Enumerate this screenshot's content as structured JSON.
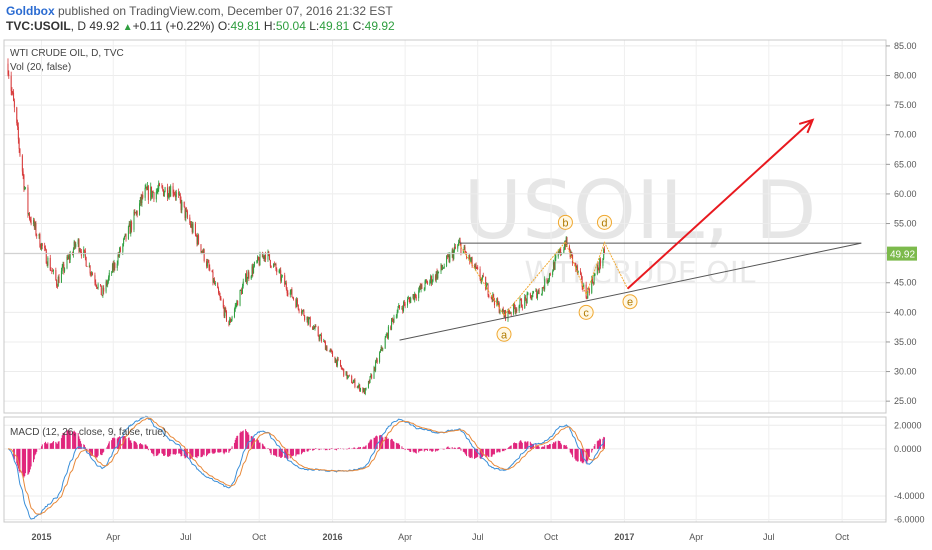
{
  "header": {
    "author": "Goldbox",
    "published": " published on TradingView.com, December 07, 2016 21:32 EST",
    "symbol": "TVC:USOIL",
    "timeframe": "D",
    "price": "49.92",
    "change": "+0.11 (+0.22%)",
    "o_label": "O:",
    "o_value": "49.81",
    "h_label": "H:",
    "h_value": "50.04",
    "l_label": "L:",
    "l_value": "49.81",
    "c_label": "C:",
    "c_value": "49.92"
  },
  "colors": {
    "up": "#2e9e3e",
    "down": "#d73a3a",
    "arrow": "#e8191f",
    "wave": "#f0a830",
    "last_price": "#7cba4c",
    "macd": "#3a8fd9",
    "signal": "#e8893a",
    "hist": "#e0227a"
  },
  "chart_data": [
    {
      "type": "candlestick",
      "title": "WTI CRUDE OIL, D, TVC",
      "indicator": "Vol (20, false)",
      "watermark_symbol": "USOIL, D",
      "watermark_name": "WTI CRUDE OIL",
      "ylim": [
        23,
        86
      ],
      "yticks": [
        "85.00",
        "80.00",
        "75.00",
        "70.00",
        "65.00",
        "60.00",
        "55.00",
        "50.00",
        "45.00",
        "40.00",
        "35.00",
        "30.00",
        "25.00"
      ],
      "xticks": [
        "2015",
        "Apr",
        "Jul",
        "Oct",
        "2016",
        "Apr",
        "Jul",
        "Oct",
        "2017",
        "Apr",
        "Jul",
        "Oct"
      ],
      "last_price": "49.92",
      "approx_closes": [
        {
          "date": "2014-11-20",
          "close": 82
        },
        {
          "date": "2014-12-15",
          "close": 57
        },
        {
          "date": "2015-01-20",
          "close": 45
        },
        {
          "date": "2015-02-15",
          "close": 52
        },
        {
          "date": "2015-03-18",
          "close": 43
        },
        {
          "date": "2015-05-10",
          "close": 60
        },
        {
          "date": "2015-06-15",
          "close": 61
        },
        {
          "date": "2015-07-20",
          "close": 51
        },
        {
          "date": "2015-08-24",
          "close": 38
        },
        {
          "date": "2015-09-15",
          "close": 46
        },
        {
          "date": "2015-10-09",
          "close": 50
        },
        {
          "date": "2015-11-15",
          "close": 42
        },
        {
          "date": "2015-12-20",
          "close": 35
        },
        {
          "date": "2016-01-20",
          "close": 29
        },
        {
          "date": "2016-02-11",
          "close": 26.5
        },
        {
          "date": "2016-03-20",
          "close": 40
        },
        {
          "date": "2016-05-15",
          "close": 47
        },
        {
          "date": "2016-06-08",
          "close": 51.5
        },
        {
          "date": "2016-08-03",
          "close": 39.5
        },
        {
          "date": "2016-09-20",
          "close": 44
        },
        {
          "date": "2016-10-19",
          "close": 51.9
        },
        {
          "date": "2016-11-14",
          "close": 43
        },
        {
          "date": "2016-12-07",
          "close": 49.92
        }
      ],
      "annotations": {
        "resistance": [
          {
            "date": "2016-06-08",
            "value": 51.7
          },
          {
            "date": "2017-10-25",
            "value": 51.7
          }
        ],
        "support": [
          {
            "date": "2016-03-25",
            "value": 35.3
          },
          {
            "date": "2017-10-25",
            "value": 51.7
          }
        ],
        "wave_path": [
          {
            "date": "2016-06-08",
            "value": 51.5
          },
          {
            "date": "2016-08-03",
            "value": 39.5
          },
          {
            "date": "2016-10-19",
            "value": 51.9
          },
          {
            "date": "2016-11-14",
            "value": 43
          },
          {
            "date": "2016-12-07",
            "value": 51.8
          },
          {
            "date": "2017-01-05",
            "value": 44
          }
        ],
        "wave_labels": [
          {
            "text": "a",
            "date": "2016-08-03",
            "value": 36.3
          },
          {
            "text": "b",
            "date": "2016-10-19",
            "value": 55.2
          },
          {
            "text": "c",
            "date": "2016-11-14",
            "value": 40.0
          },
          {
            "text": "d",
            "date": "2016-12-07",
            "value": 55.2
          },
          {
            "text": "e",
            "date": "2017-01-08",
            "value": 41.8
          }
        ],
        "arrow": [
          {
            "date": "2017-01-05",
            "value": 44
          },
          {
            "date": "2017-08-25",
            "value": 72.5
          }
        ]
      }
    },
    {
      "type": "macd",
      "legend": "MACD (12, 26, close, 9, false, true)",
      "ylim": [
        -6.2,
        2.7
      ],
      "yticks": [
        "2.0000",
        "0.0000",
        "-4.0000",
        "-6.0000"
      ]
    }
  ]
}
